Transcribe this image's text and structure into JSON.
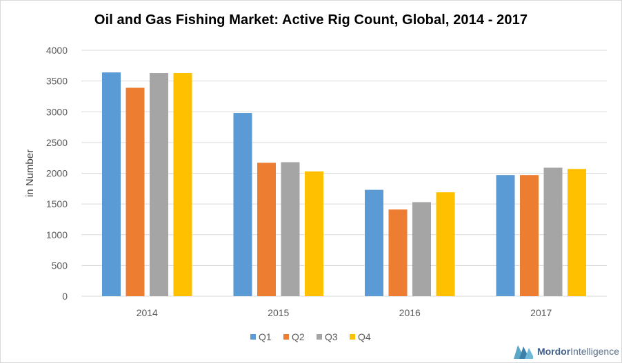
{
  "chart_data": {
    "type": "bar",
    "title": "Oil and Gas Fishing Market: Active Rig Count, Global, 2014 - 2017",
    "ylabel": "in Number",
    "xlabel": "",
    "ylim": [
      0,
      4000
    ],
    "yticks": [
      0,
      500,
      1000,
      1500,
      2000,
      2500,
      3000,
      3500,
      4000
    ],
    "categories": [
      "2014",
      "2015",
      "2016",
      "2017"
    ],
    "grid": true,
    "legend_position": "bottom",
    "series": [
      {
        "name": "Q1",
        "color": "#5b9bd5",
        "values": [
          3640,
          2980,
          1730,
          1970
        ]
      },
      {
        "name": "Q2",
        "color": "#ed7d31",
        "values": [
          3390,
          2170,
          1410,
          1970
        ]
      },
      {
        "name": "Q3",
        "color": "#a5a5a5",
        "values": [
          3630,
          2180,
          1530,
          2090
        ]
      },
      {
        "name": "Q4",
        "color": "#ffc000",
        "values": [
          3630,
          2030,
          1690,
          2070
        ]
      }
    ]
  },
  "logo": {
    "name_bold": "Mordor",
    "name_rest": "Intelligence"
  }
}
